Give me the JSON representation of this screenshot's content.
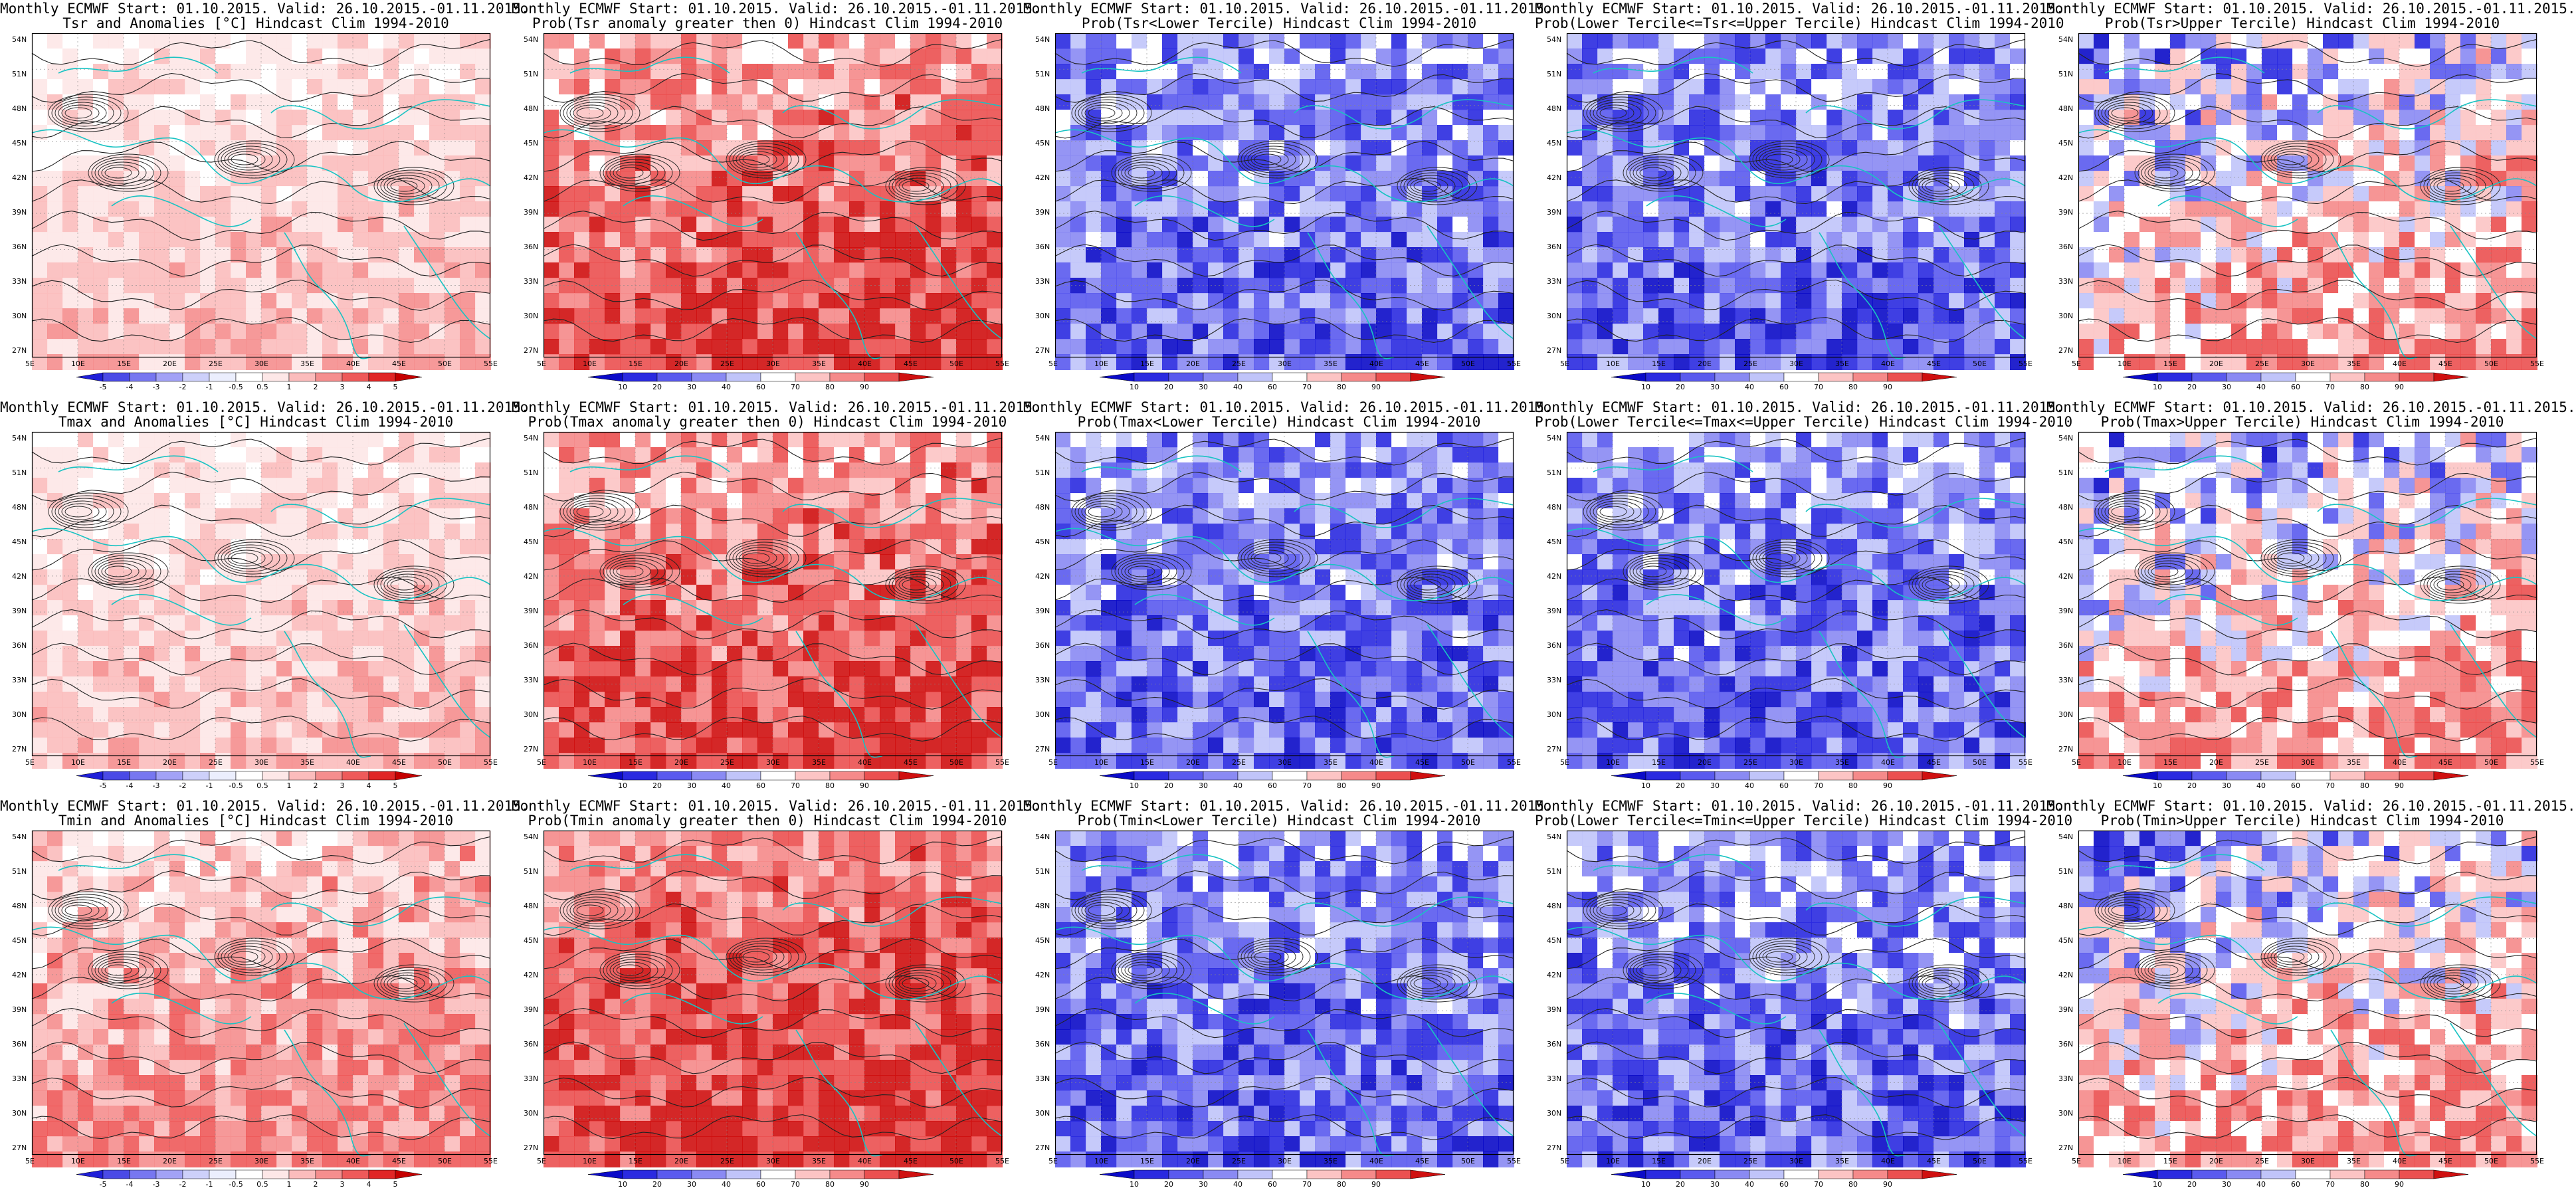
{
  "figure": {
    "rows": [
      {
        "variable": "Tsr",
        "panels": [
          {
            "line1": "Monthly ECMWF Start: 01.10.2015. Valid: 26.10.2015.-01.11.2015.",
            "line2": "Tsr and Anomalies [°C] Hindcast Clim 1994-2010",
            "kind": "anomaly",
            "shading": "warm-light"
          },
          {
            "line1": "Monthly ECMWF Start: 01.10.2015. Valid: 26.10.2015.-01.11.2015.",
            "line2": "Prob(Tsr anomaly greater then 0) Hindcast Clim 1994-2010",
            "kind": "prob",
            "shading": "warm"
          },
          {
            "line1": "Monthly ECMWF Start: 01.10.2015. Valid: 26.10.2015.-01.11.2015.",
            "line2": "Prob(Tsr<Lower Tercile) Hindcast Clim 1994-2010",
            "kind": "prob",
            "shading": "cold-strong"
          },
          {
            "line1": "Monthly ECMWF Start: 01.10.2015. Valid: 26.10.2015.-01.11.2015.",
            "line2": "Prob(Lower Tercile<=Tsr<=Upper Tercile) Hindcast Clim 1994-2010",
            "kind": "prob",
            "shading": "cold-strong"
          },
          {
            "line1": "Monthly ECMWF Start: 01.10.2015. Valid: 26.10.2015.-01.11.2015.",
            "line2": "Prob(Tsr>Upper Tercile) Hindcast Clim 1994-2010",
            "kind": "prob",
            "shading": "mixed"
          }
        ]
      },
      {
        "variable": "Tmax",
        "panels": [
          {
            "line1": "Monthly ECMWF Start: 01.10.2015. Valid: 26.10.2015.-01.11.2015.",
            "line2": "Tmax and Anomalies [°C] Hindcast Clim 1994-2010",
            "kind": "anomaly",
            "shading": "warm-light"
          },
          {
            "line1": "Monthly ECMWF Start: 01.10.2015. Valid: 26.10.2015.-01.11.2015.",
            "line2": "Prob(Tmax anomaly greater then 0) Hindcast Clim 1994-2010",
            "kind": "prob",
            "shading": "warm"
          },
          {
            "line1": "Monthly ECMWF Start: 01.10.2015. Valid: 26.10.2015.-01.11.2015.",
            "line2": "Prob(Tmax<Lower Tercile) Hindcast Clim 1994-2010",
            "kind": "prob",
            "shading": "cold-strong"
          },
          {
            "line1": "Monthly ECMWF Start: 01.10.2015. Valid: 26.10.2015.-01.11.2015.",
            "line2": "Prob(Lower Tercile<=Tmax<=Upper Tercile) Hindcast Clim 1994-2010",
            "kind": "prob",
            "shading": "cold-strong"
          },
          {
            "line1": "Monthly ECMWF Start: 01.10.2015. Valid: 26.10.2015.-01.11.2015.",
            "line2": "Prob(Tmax>Upper Tercile) Hindcast Clim 1994-2010",
            "kind": "prob",
            "shading": "mixed"
          }
        ]
      },
      {
        "variable": "Tmin",
        "panels": [
          {
            "line1": "Monthly ECMWF Start: 01.10.2015. Valid: 26.10.2015.-01.11.2015.",
            "line2": "Tmin and Anomalies [°C] Hindcast Clim 1994-2010",
            "kind": "anomaly",
            "shading": "warm"
          },
          {
            "line1": "Monthly ECMWF Start: 01.10.2015. Valid: 26.10.2015.-01.11.2015.",
            "line2": "Prob(Tmin anomaly greater then 0) Hindcast Clim 1994-2010",
            "kind": "prob",
            "shading": "warm-strong"
          },
          {
            "line1": "Monthly ECMWF Start: 01.10.2015. Valid: 26.10.2015.-01.11.2015.",
            "line2": "Prob(Tmin<Lower Tercile) Hindcast Clim 1994-2010",
            "kind": "prob",
            "shading": "cold-strong"
          },
          {
            "line1": "Monthly ECMWF Start: 01.10.2015. Valid: 26.10.2015.-01.11.2015.",
            "line2": "Prob(Lower Tercile<=Tmin<=Upper Tercile) Hindcast Clim 1994-2010",
            "kind": "prob",
            "shading": "cold-strong"
          },
          {
            "line1": "Monthly ECMWF Start: 01.10.2015. Valid: 26.10.2015.-01.11.2015.",
            "line2": "Prob(Tmin>Upper Tercile) Hindcast Clim 1994-2010",
            "kind": "prob",
            "shading": "mixed"
          }
        ]
      }
    ],
    "lat_labels": [
      "54N",
      "51N",
      "48N",
      "45N",
      "42N",
      "39N",
      "36N",
      "33N",
      "30N",
      "27N"
    ],
    "lon_labels": [
      "5E",
      "10E",
      "15E",
      "20E",
      "25E",
      "30E",
      "35E",
      "40E",
      "45E",
      "50E",
      "55E"
    ],
    "anomaly_colorbar_ticks": [
      "-5",
      "-4",
      "-3",
      "-2",
      "-1",
      "-0.5",
      "0.5",
      "1",
      "2",
      "3",
      "4",
      "5"
    ],
    "prob_colorbar_ticks": [
      "10",
      "20",
      "30",
      "40",
      "60",
      "70",
      "80",
      "90"
    ],
    "colors": {
      "coast": "#19c3c3",
      "contour": "#222222",
      "anomaly_palette": [
        "#1f1fd8",
        "#4a4ae6",
        "#7777f0",
        "#a2a2f6",
        "#cdd0fa",
        "#ebeefd",
        "#ffffff",
        "#fde7e7",
        "#fbbcbc",
        "#f58e8e",
        "#ee5a5a",
        "#e02626",
        "#c40000"
      ],
      "prob_palette": [
        "#0b0bc8",
        "#2a2ae0",
        "#5a5aee",
        "#8a8af3",
        "#c0c4f9",
        "#ffffff",
        "#fcc4c4",
        "#f58a8a",
        "#eb5050",
        "#cf1010"
      ]
    }
  }
}
